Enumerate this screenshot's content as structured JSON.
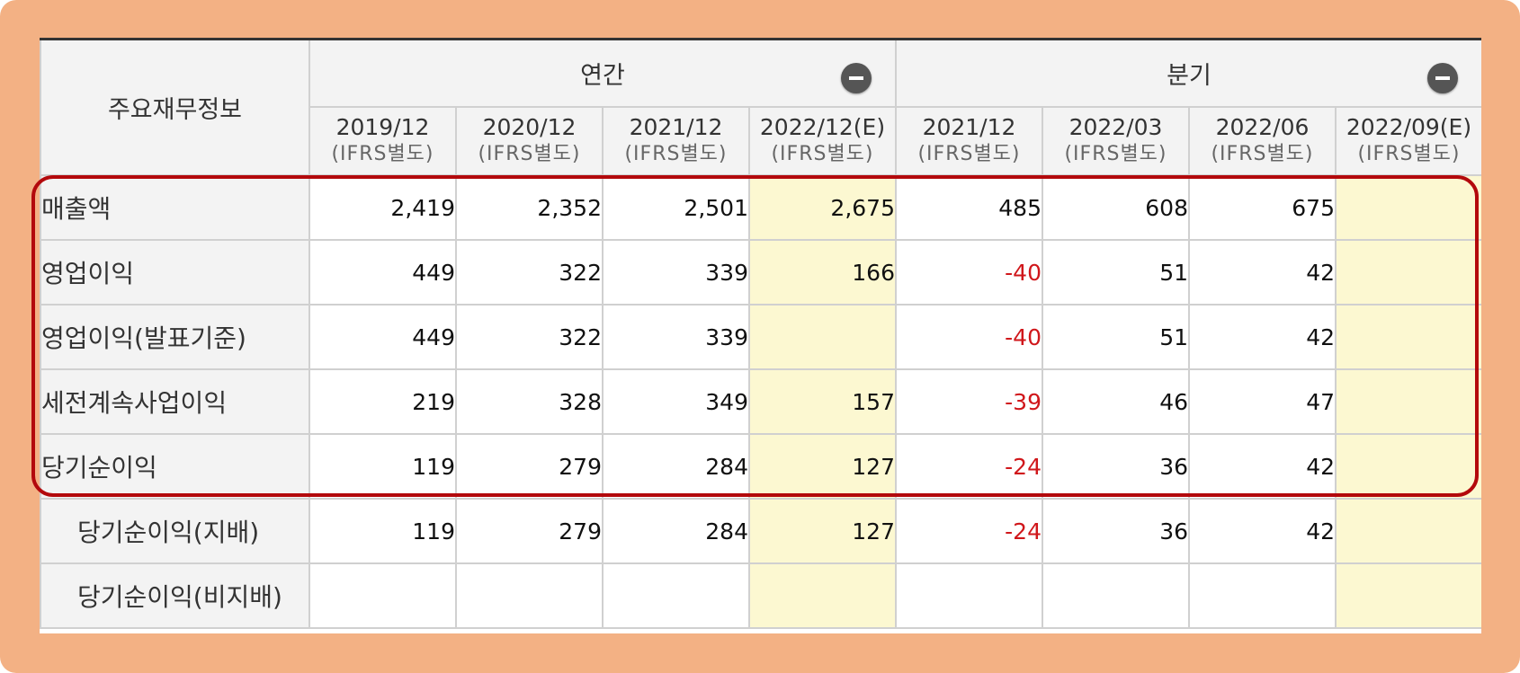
{
  "header": {
    "corner": "주요재무정보",
    "annual": "연간",
    "quarterly": "분기",
    "collapse_icon": "minus-circle-icon"
  },
  "periods": [
    {
      "label": "2019/12",
      "sub": "(IFRS별도)"
    },
    {
      "label": "2020/12",
      "sub": "(IFRS별도)"
    },
    {
      "label": "2021/12",
      "sub": "(IFRS별도)"
    },
    {
      "label": "2022/12(E)",
      "sub": "(IFRS별도)"
    },
    {
      "label": "2021/12",
      "sub": "(IFRS별도)"
    },
    {
      "label": "2022/03",
      "sub": "(IFRS별도)"
    },
    {
      "label": "2022/06",
      "sub": "(IFRS별도)"
    },
    {
      "label": "2022/09(E)",
      "sub": "(IFRS별도)"
    }
  ],
  "rows": [
    {
      "label": "매출액",
      "values": [
        "2,419",
        "2,352",
        "2,501",
        "2,675",
        "485",
        "608",
        "675",
        ""
      ]
    },
    {
      "label": "영업이익",
      "values": [
        "449",
        "322",
        "339",
        "166",
        "-40",
        "51",
        "42",
        ""
      ]
    },
    {
      "label": "영업이익(발표기준)",
      "values": [
        "449",
        "322",
        "339",
        "",
        "-40",
        "51",
        "42",
        ""
      ]
    },
    {
      "label": "세전계속사업이익",
      "values": [
        "219",
        "328",
        "349",
        "157",
        "-39",
        "46",
        "47",
        ""
      ]
    },
    {
      "label": "당기순이익",
      "values": [
        "119",
        "279",
        "284",
        "127",
        "-24",
        "36",
        "42",
        ""
      ]
    },
    {
      "label": "당기순이익(지배)",
      "values": [
        "119",
        "279",
        "284",
        "127",
        "-24",
        "36",
        "42",
        ""
      ]
    },
    {
      "label": "당기순이익(비지배)",
      "values": [
        "",
        "",
        "",
        "",
        "",
        "",
        "",
        ""
      ]
    }
  ],
  "colors": {
    "frame": "#f3b184",
    "header_bg": "#f3f3f3",
    "estimate_bg": "#fcf8d1",
    "negative": "#d0171b",
    "highlight_border": "#b3090c"
  }
}
